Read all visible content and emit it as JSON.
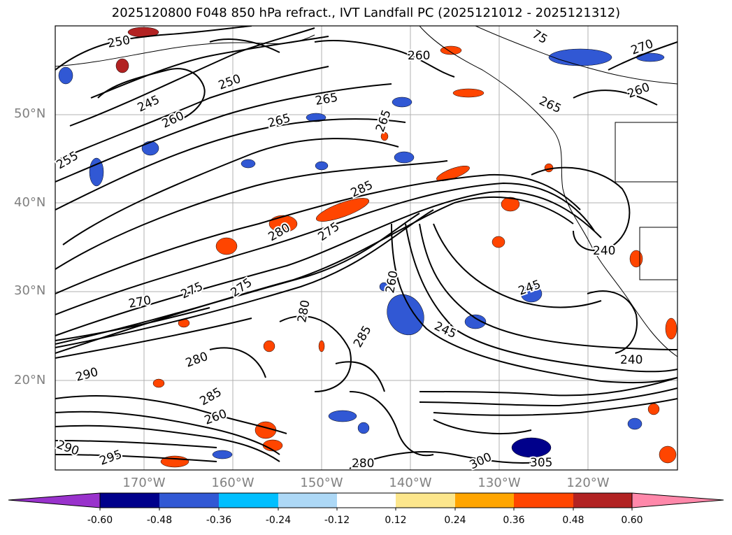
{
  "title": "2025120800 F048 850 hPa refract., IVT Landfall PC (2025121012 - 2025121312)",
  "lat_labels": [
    "50°N",
    "40°N",
    "30°N",
    "20°N"
  ],
  "lon_labels": [
    "170°W",
    "160°W",
    "150°W",
    "140°W",
    "130°W",
    "120°W"
  ],
  "contour_labels": [
    "250",
    "245",
    "250",
    "260",
    "265",
    "265",
    "255",
    "265",
    "75",
    "260",
    "270",
    "265",
    "260",
    "285",
    "280",
    "275",
    "275",
    "270",
    "275",
    "280",
    "240",
    "245",
    "245",
    "260",
    "240",
    "290",
    "280",
    "285",
    "260",
    "295",
    "290",
    "305",
    "300",
    "280",
    "285"
  ],
  "colorbar": {
    "tick_labels": [
      "-0.60",
      "-0.48",
      "-0.36",
      "-0.24",
      "-0.12",
      "0.12",
      "0.24",
      "0.36",
      "0.48",
      "0.60"
    ],
    "colors": [
      "#9932cc",
      "#00008b",
      "#3158d4",
      "#00bfff",
      "#add8f6",
      "#ffffff",
      "#fce68c",
      "#ffa500",
      "#ff4500",
      "#b22222",
      "#ff88aa"
    ]
  }
}
